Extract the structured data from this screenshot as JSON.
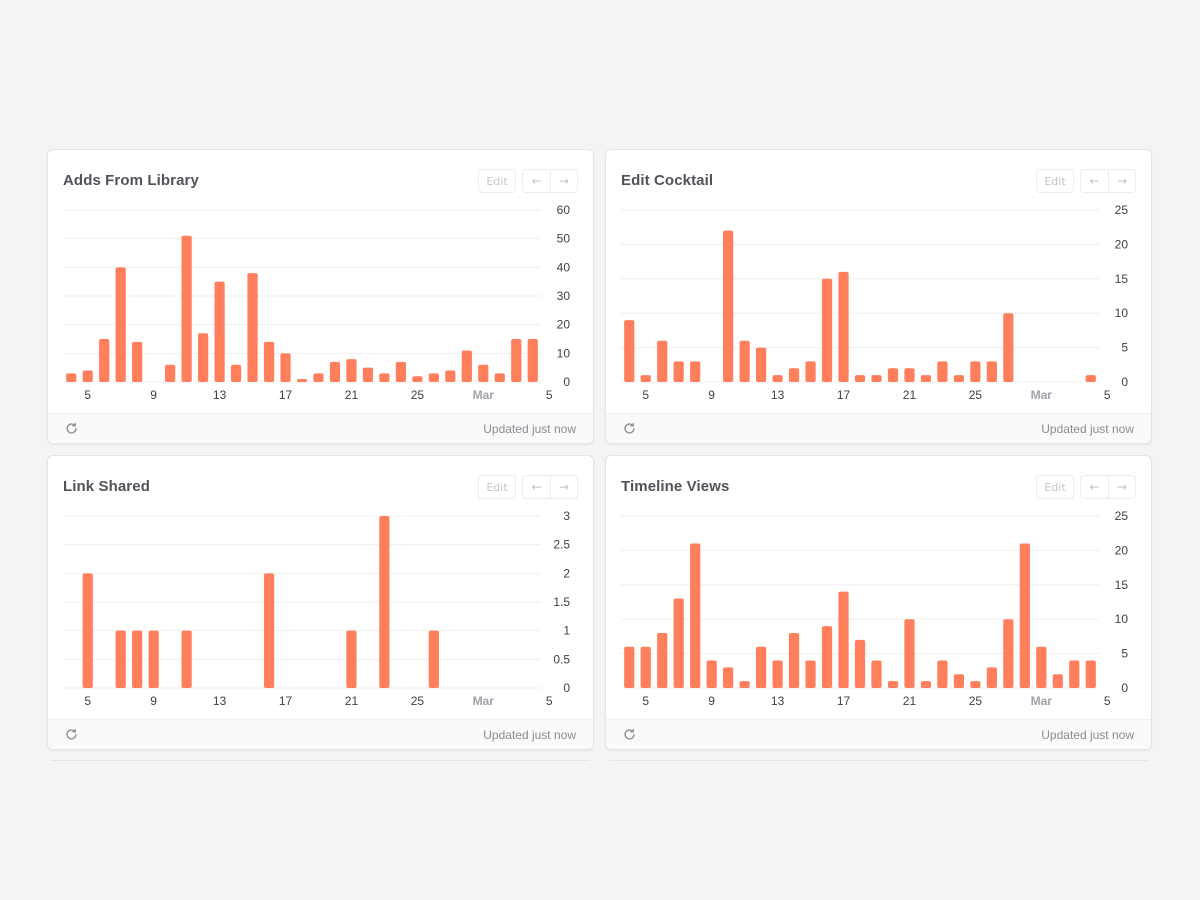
{
  "colors": {
    "bar": "#ff7f5c",
    "grid": "#efeff1",
    "axis_text": "#3f3f46",
    "month_text": "#a1a1aa"
  },
  "common": {
    "edit_label": "Edit",
    "prev_arrow": "←",
    "next_arrow": "→",
    "updated_text": "Updated just now",
    "refresh_icon": "refresh-icon"
  },
  "cards": [
    {
      "title": "Adds From Library",
      "chart_data": {
        "type": "bar",
        "title": "Adds From Library",
        "y_ticks": [
          "60",
          "50",
          "40",
          "30",
          "20",
          "10",
          "0"
        ],
        "ylim": [
          0,
          60
        ],
        "x_ticks": [
          "5",
          "9",
          "13",
          "17",
          "21",
          "25",
          "Mar",
          "5"
        ],
        "values": [
          3,
          4,
          15,
          40,
          14,
          0,
          6,
          51,
          17,
          35,
          6,
          38,
          14,
          10,
          1,
          3,
          7,
          8,
          5,
          3,
          7,
          2,
          3,
          4,
          11,
          6,
          3,
          15,
          15
        ]
      }
    },
    {
      "title": "Edit Cocktail",
      "chart_data": {
        "type": "bar",
        "title": "Edit Cocktail",
        "y_ticks": [
          "25",
          "20",
          "15",
          "10",
          "5",
          "0"
        ],
        "ylim": [
          0,
          25
        ],
        "x_ticks": [
          "5",
          "9",
          "13",
          "17",
          "21",
          "25",
          "Mar",
          "5"
        ],
        "values": [
          9,
          1,
          6,
          3,
          3,
          0,
          22,
          6,
          5,
          1,
          2,
          3,
          15,
          16,
          1,
          1,
          2,
          2,
          1,
          3,
          1,
          3,
          3,
          10,
          0,
          0,
          0,
          0,
          1
        ]
      }
    },
    {
      "title": "Link Shared",
      "chart_data": {
        "type": "bar",
        "title": "Link Shared",
        "y_ticks": [
          "3",
          "2.5",
          "2",
          "1.5",
          "1",
          "0.5",
          "0"
        ],
        "ylim": [
          0,
          3
        ],
        "x_ticks": [
          "5",
          "9",
          "13",
          "17",
          "21",
          "25",
          "Mar",
          "5"
        ],
        "values": [
          0,
          2,
          0,
          1,
          1,
          1,
          0,
          1,
          0,
          0,
          0,
          0,
          2,
          0,
          0,
          0,
          0,
          1,
          0,
          3,
          0,
          0,
          1,
          0,
          0,
          0,
          0,
          0,
          0
        ]
      }
    },
    {
      "title": "Timeline Views",
      "chart_data": {
        "type": "bar",
        "title": "Timeline Views",
        "y_ticks": [
          "25",
          "20",
          "15",
          "10",
          "5",
          "0"
        ],
        "ylim": [
          0,
          25
        ],
        "x_ticks": [
          "5",
          "9",
          "13",
          "17",
          "21",
          "25",
          "Mar",
          "5"
        ],
        "values": [
          6,
          6,
          8,
          13,
          21,
          4,
          3,
          1,
          6,
          4,
          8,
          4,
          9,
          14,
          7,
          4,
          1,
          10,
          1,
          4,
          2,
          1,
          3,
          10,
          21,
          6,
          2,
          4,
          4
        ]
      }
    }
  ]
}
